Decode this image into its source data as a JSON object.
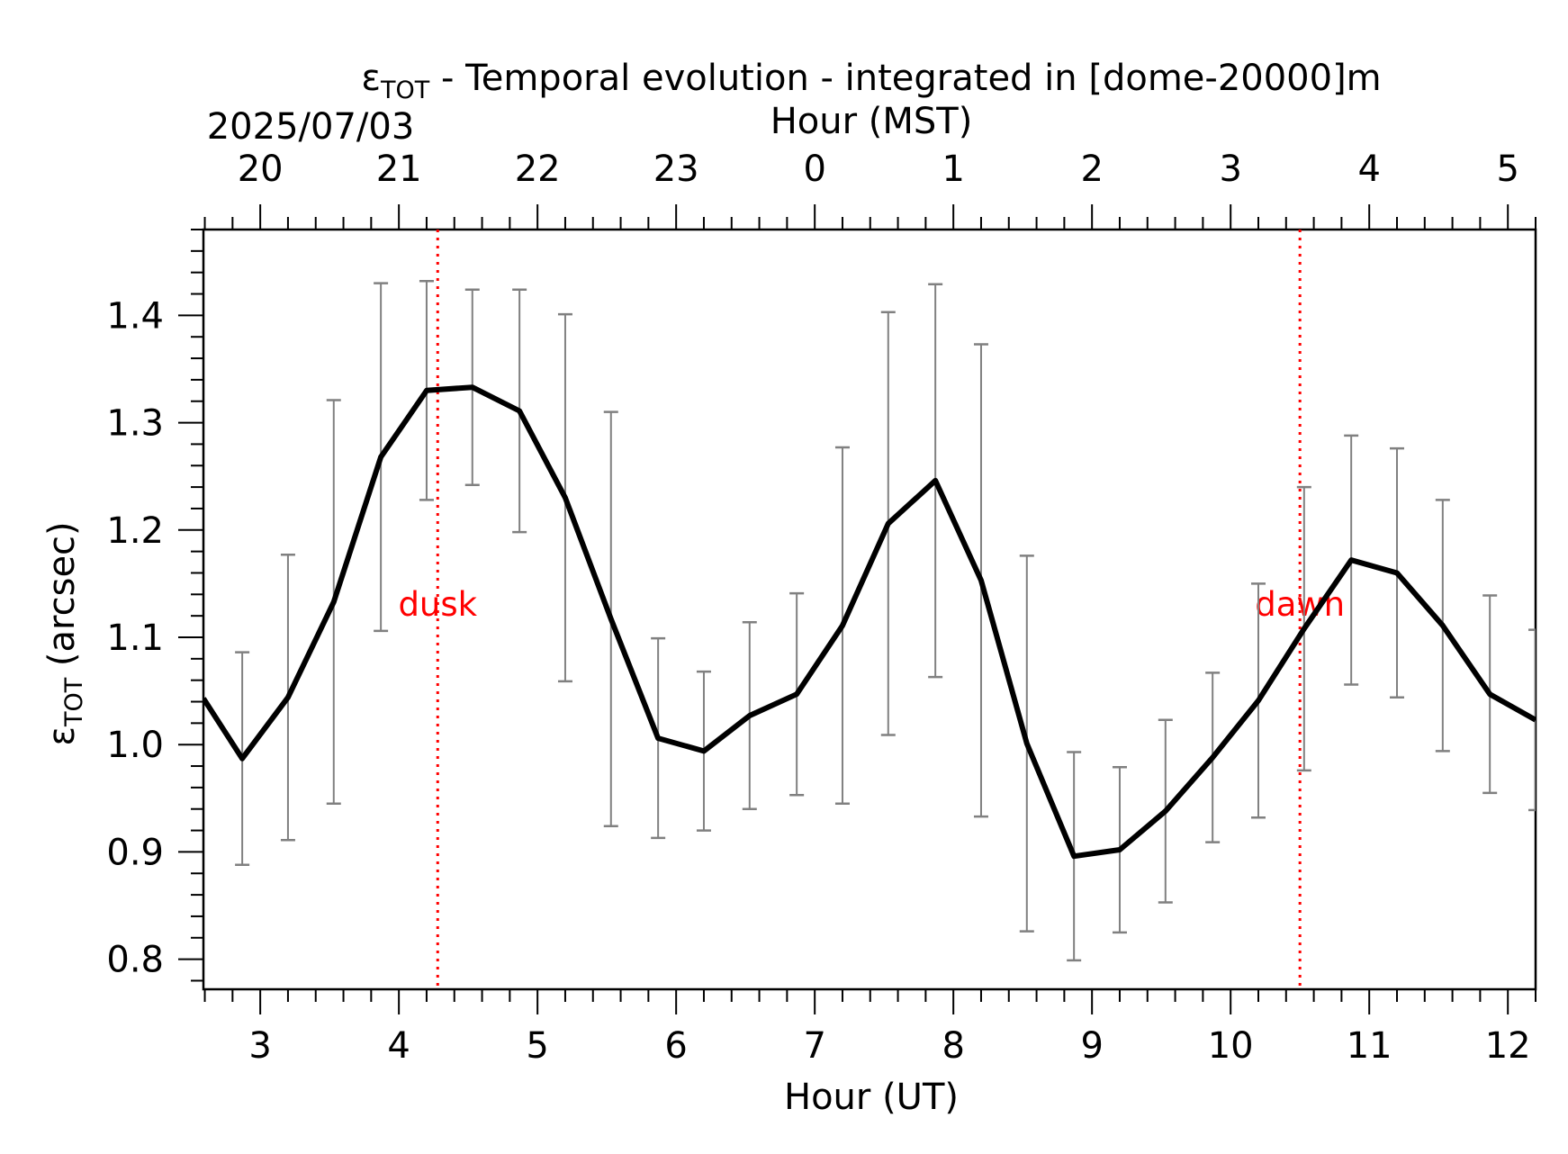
{
  "chart_data": {
    "type": "line",
    "title_main": "ε",
    "title_sub": "TOT",
    "title_rest": " - Temporal evolution - integrated in [dome-20000]m",
    "top_axis": {
      "label": "Hour (MST)",
      "date_label": "2025/07/03",
      "tick_labels": [
        "20",
        "21",
        "22",
        "23",
        "0",
        "1",
        "2",
        "3",
        "4",
        "5"
      ]
    },
    "xlabel": "Hour (UT)",
    "ylabel_main": "ε",
    "ylabel_sub": "TOT",
    "ylabel_rest": " (arcsec)",
    "xlim": [
      2.59,
      12.2
    ],
    "ylim": [
      0.772,
      1.48
    ],
    "x_ticks": [
      3,
      4,
      5,
      6,
      7,
      8,
      9,
      10,
      11,
      12
    ],
    "x_tick_labels": [
      "3",
      "4",
      "5",
      "6",
      "7",
      "8",
      "9",
      "10",
      "11",
      "12"
    ],
    "y_ticks": [
      0.8,
      0.9,
      1.0,
      1.1,
      1.2,
      1.3,
      1.4
    ],
    "y_tick_labels": [
      "0.8",
      "0.9",
      "1.0",
      "1.1",
      "1.2",
      "1.3",
      "1.4"
    ],
    "series": [
      {
        "color": "#000000",
        "x": [
          2.59,
          2.87,
          3.2,
          3.53,
          3.87,
          4.2,
          4.53,
          4.87,
          5.2,
          5.53,
          5.87,
          6.2,
          6.53,
          6.87,
          7.2,
          7.53,
          7.87,
          8.2,
          8.53,
          8.87,
          9.2,
          9.53,
          9.87,
          10.2,
          10.53,
          10.87,
          11.2,
          11.53,
          11.87,
          12.2
        ],
        "y": [
          1.043,
          0.987,
          1.044,
          1.133,
          1.268,
          1.33,
          1.333,
          1.311,
          1.23,
          1.117,
          1.006,
          0.994,
          1.027,
          1.047,
          1.111,
          1.206,
          1.246,
          1.153,
          1.001,
          0.896,
          0.902,
          0.938,
          0.988,
          1.041,
          1.108,
          1.172,
          1.16,
          1.111,
          1.047,
          1.023
        ],
        "err": [
          null,
          0.099,
          0.133,
          0.188,
          0.162,
          0.102,
          0.091,
          0.113,
          0.171,
          0.193,
          0.093,
          0.074,
          0.087,
          0.094,
          0.166,
          0.197,
          0.183,
          0.22,
          0.175,
          0.097,
          0.077,
          0.085,
          0.079,
          0.109,
          0.132,
          0.116,
          0.116,
          0.117,
          0.092,
          0.084
        ],
        "err_color": "#808080"
      }
    ],
    "annotations": [
      {
        "x": 4.28,
        "label": "dusk",
        "y": 1.12,
        "color": "#ff0000"
      },
      {
        "x": 10.5,
        "label": "dawn",
        "y": 1.12,
        "color": "#ff0000"
      }
    ],
    "grid": false
  }
}
